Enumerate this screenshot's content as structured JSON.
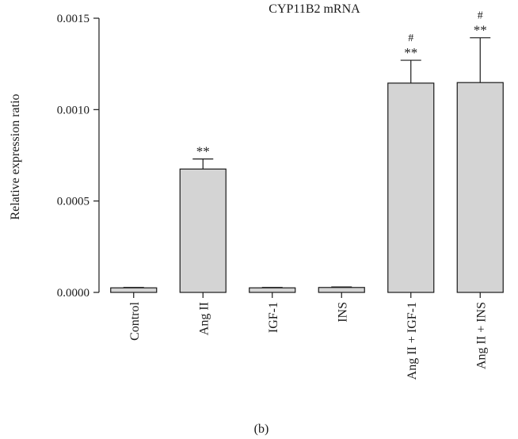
{
  "chart_data": {
    "type": "bar",
    "title": "CYP11B2 mRNA",
    "ylabel": "Relative expression ratio",
    "xlabel": "",
    "panel_label": "(b)",
    "ylim": [
      0,
      0.0015
    ],
    "yticks": [
      0.0,
      0.0005,
      0.001,
      0.0015
    ],
    "ytick_labels": [
      "0.0000",
      "0.0005",
      "0.0010",
      "0.0015"
    ],
    "grid": false,
    "categories": [
      "Control",
      "Ang II",
      "IGF-1",
      "INS",
      "Ang II + IGF-1",
      "Ang II + INS"
    ],
    "values": [
      2.5e-05,
      0.000675,
      2.5e-05,
      2.7e-05,
      0.001145,
      0.001148
    ],
    "errors": [
      2e-06,
      5.5e-05,
      2e-06,
      3e-06,
      0.000125,
      0.000245
    ],
    "significance": [
      "",
      "**",
      "",
      "",
      "**",
      "**"
    ],
    "significance_secondary": [
      "",
      "",
      "",
      "",
      "#",
      "#"
    ],
    "bar_color": "#d4d4d4",
    "edge_color": "#1a1a1a"
  }
}
